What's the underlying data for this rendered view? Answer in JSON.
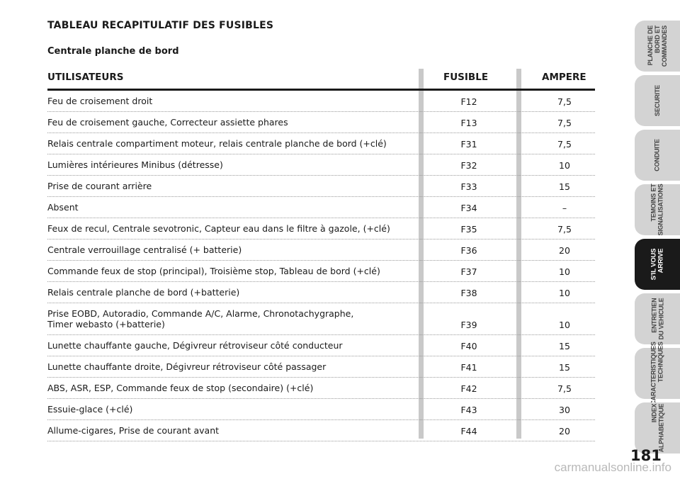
{
  "title": "TABLEAU RECAPITULATIF DES FUSIBLES",
  "subtitle": "Centrale planche de bord",
  "table": {
    "headers": {
      "user": "UTILISATEURS",
      "fuse": "FUSIBLE",
      "amp": "AMPERE"
    },
    "rows": [
      {
        "user": "Feu de croisement droit",
        "fuse": "F12",
        "amp": "7,5"
      },
      {
        "user": "Feu de croisement gauche, Correcteur assiette phares",
        "fuse": "F13",
        "amp": "7,5"
      },
      {
        "user": "Relais centrale compartiment moteur, relais centrale planche de bord (+clé)",
        "fuse": "F31",
        "amp": "7,5"
      },
      {
        "user": "Lumières intérieures Minibus (détresse)",
        "fuse": "F32",
        "amp": "10"
      },
      {
        "user": "Prise de courant arrière",
        "fuse": "F33",
        "amp": "15"
      },
      {
        "user": "Absent",
        "fuse": "F34",
        "amp": "–"
      },
      {
        "user": "Feux de recul, Centrale sevotronic, Capteur eau dans le filtre à gazole, (+clé)",
        "fuse": "F35",
        "amp": "7,5"
      },
      {
        "user": "Centrale verrouillage centralisé (+ batterie)",
        "fuse": "F36",
        "amp": "20"
      },
      {
        "user": "Commande feux de stop (principal), Troisième stop, Tableau de bord (+clé)",
        "fuse": "F37",
        "amp": "10"
      },
      {
        "user": "Relais centrale planche de bord (+batterie)",
        "fuse": "F38",
        "amp": "10"
      },
      {
        "user": "Prise EOBD, Autoradio, Commande A/C, Alarme, Chronotachygraphe,\nTimer webasto (+batterie)",
        "fuse": "F39",
        "amp": "10"
      },
      {
        "user": "Lunette chauffante gauche, Dégivreur rétroviseur côté conducteur",
        "fuse": "F40",
        "amp": "15"
      },
      {
        "user": "Lunette chauffante droite, Dégivreur rétroviseur côté passager",
        "fuse": "F41",
        "amp": "15"
      },
      {
        "user": "ABS, ASR, ESP, Commande feux de stop (secondaire) (+clé)",
        "fuse": "F42",
        "amp": "7,5"
      },
      {
        "user": "Essuie-glace (+clé)",
        "fuse": "F43",
        "amp": "30"
      },
      {
        "user": "Allume-cigares, Prise de courant avant",
        "fuse": "F44",
        "amp": "20"
      }
    ]
  },
  "sidebar": {
    "tabs": [
      {
        "label": "PLANCHE DE\nBORD ET\nCOMMANDES",
        "active": false
      },
      {
        "label": "SECURITE",
        "active": false
      },
      {
        "label": "CONDUITE",
        "active": false
      },
      {
        "label": "TEMOINS ET\nSIGNALISATIONS",
        "active": false
      },
      {
        "label": "S'IL VOUS\nARRIVE",
        "active": true
      },
      {
        "label": "ENTRETIEN\nDU VEHICULE",
        "active": false
      },
      {
        "label": "CARACTERISTIQUES\nTECHNIQUES",
        "active": false
      },
      {
        "label": "INDEX\nALPHABETIQUE",
        "active": false
      }
    ]
  },
  "page_number": "181",
  "watermark": "carmanualsonline.info"
}
